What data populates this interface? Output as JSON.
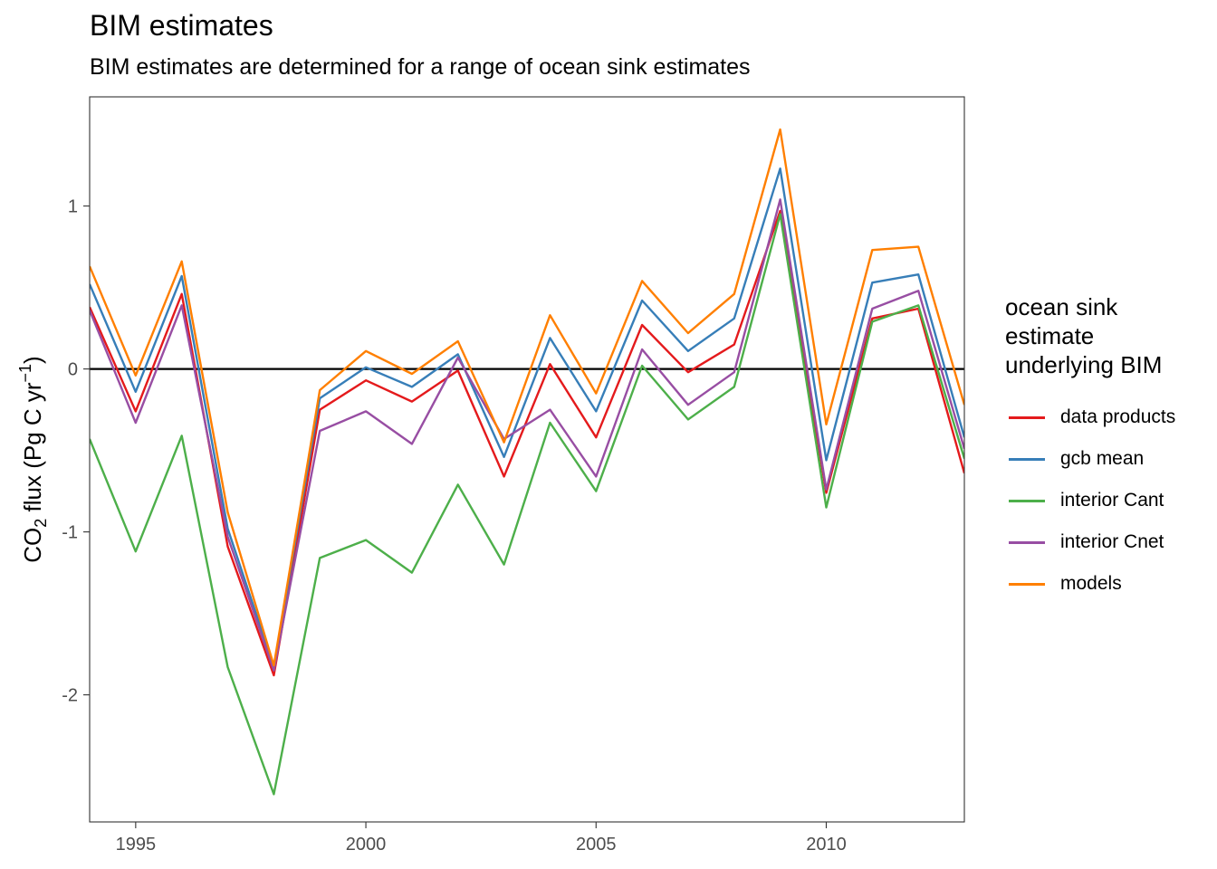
{
  "chart_data": {
    "type": "line",
    "title": "BIM estimates",
    "subtitle": "BIM estimates are determined for a range of ocean sink estimates",
    "xlabel": "",
    "ylabel": "CO2 flux (Pg C yr-1)",
    "ylabel_parts": {
      "base": "CO",
      "sub": "2",
      "mid": " flux (Pg C yr",
      "sup": "−1",
      "end": ")"
    },
    "xlim": [
      1994,
      2013
    ],
    "ylim": [
      -2.78,
      1.67
    ],
    "x_ticks": [
      1995,
      2000,
      2005,
      2010
    ],
    "y_ticks": [
      -2,
      -1,
      0,
      1
    ],
    "y_tick_labels": [
      "-2",
      "-1",
      "0",
      "1"
    ],
    "hline": 0,
    "grid": false,
    "legend_position": "right",
    "legend_title": "ocean sink estimate underlying BIM",
    "x": [
      1994,
      1995,
      1996,
      1997,
      1998,
      1999,
      2000,
      2001,
      2002,
      2003,
      2004,
      2005,
      2006,
      2007,
      2008,
      2009,
      2010,
      2011,
      2012,
      2013
    ],
    "series": [
      {
        "name": "data products",
        "color": "#E41A1C",
        "values": [
          0.38,
          -0.26,
          0.46,
          -1.09,
          -1.88,
          -0.25,
          -0.07,
          -0.2,
          -0.01,
          -0.66,
          0.03,
          -0.42,
          0.27,
          -0.02,
          0.15,
          0.97,
          -0.76,
          0.31,
          0.37,
          -0.64
        ]
      },
      {
        "name": "gcb mean",
        "color": "#377EB8",
        "values": [
          0.52,
          -0.14,
          0.57,
          -0.98,
          -1.83,
          -0.18,
          0.01,
          -0.11,
          0.09,
          -0.54,
          0.19,
          -0.26,
          0.42,
          0.11,
          0.31,
          1.23,
          -0.56,
          0.53,
          0.58,
          -0.42
        ]
      },
      {
        "name": "interior Cant",
        "color": "#4DAF4A",
        "values": [
          -0.43,
          -1.12,
          -0.41,
          -1.83,
          -2.61,
          -1.16,
          -1.05,
          -1.25,
          -0.71,
          -1.2,
          -0.33,
          -0.75,
          0.02,
          -0.31,
          -0.11,
          0.95,
          -0.85,
          0.29,
          0.39,
          -0.55
        ]
      },
      {
        "name": "interior Cnet",
        "color": "#984EA3",
        "values": [
          0.36,
          -0.33,
          0.39,
          -1.03,
          -1.85,
          -0.38,
          -0.26,
          -0.46,
          0.07,
          -0.43,
          -0.25,
          -0.66,
          0.12,
          -0.22,
          -0.02,
          1.04,
          -0.74,
          0.37,
          0.48,
          -0.49
        ]
      },
      {
        "name": "models",
        "color": "#FF7F00",
        "values": [
          0.63,
          -0.04,
          0.66,
          -0.88,
          -1.82,
          -0.13,
          0.11,
          -0.03,
          0.17,
          -0.45,
          0.33,
          -0.15,
          0.54,
          0.22,
          0.46,
          1.47,
          -0.34,
          0.73,
          0.75,
          -0.22
        ]
      }
    ]
  }
}
